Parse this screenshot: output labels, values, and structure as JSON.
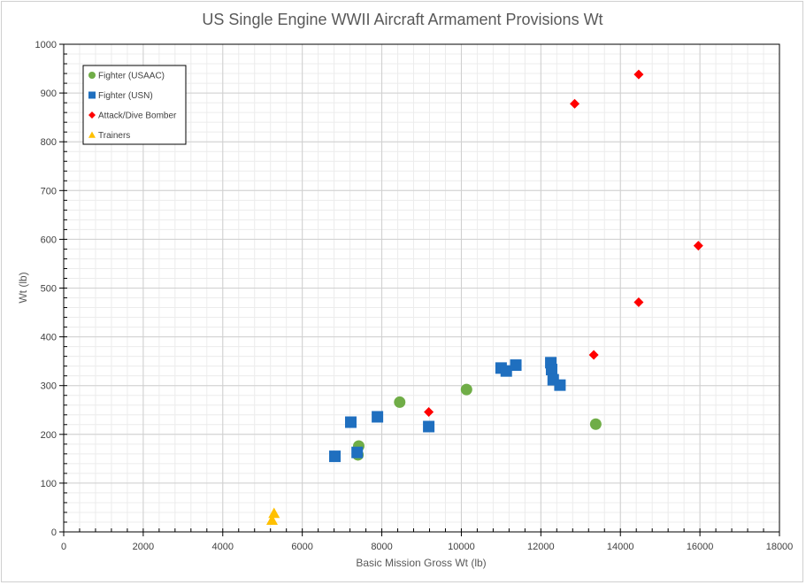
{
  "chart_data": {
    "type": "scatter",
    "title": "US Single Engine WWII Aircraft Armament Provisions Wt",
    "xlabel": "Basic Mission Gross Wt (lb)",
    "ylabel": "Wt (lb)",
    "xlim": [
      0,
      18000
    ],
    "ylim": [
      0,
      1000
    ],
    "xticks": [
      0,
      2000,
      4000,
      6000,
      8000,
      10000,
      12000,
      14000,
      16000,
      18000
    ],
    "yticks": [
      0,
      100,
      200,
      300,
      400,
      500,
      600,
      700,
      800,
      900,
      1000
    ],
    "x_minor_step": 400,
    "y_minor_step": 20,
    "legend_position": "top-left",
    "series": [
      {
        "name": "Fighter (USAAC)",
        "marker": "circle",
        "color": "#70ad47",
        "points": [
          [
            7400,
            158
          ],
          [
            7420,
            176
          ],
          [
            8450,
            266
          ],
          [
            10130,
            292
          ],
          [
            13380,
            221
          ]
        ]
      },
      {
        "name": "Fighter (USN)",
        "marker": "square",
        "color": "#1f6fbf",
        "points": [
          [
            6820,
            155
          ],
          [
            7220,
            225
          ],
          [
            7380,
            163
          ],
          [
            7890,
            236
          ],
          [
            9180,
            216
          ],
          [
            11000,
            336
          ],
          [
            11130,
            330
          ],
          [
            11370,
            342
          ],
          [
            12250,
            347
          ],
          [
            12270,
            333
          ],
          [
            12310,
            312
          ],
          [
            12480,
            301
          ]
        ]
      },
      {
        "name": "Attack/Dive Bomber",
        "marker": "diamond",
        "color": "#ff0000",
        "points": [
          [
            9180,
            246
          ],
          [
            12850,
            878
          ],
          [
            13330,
            363
          ],
          [
            14460,
            938
          ],
          [
            14460,
            471
          ],
          [
            15960,
            587
          ]
        ]
      },
      {
        "name": "Trainers",
        "marker": "triangle",
        "color": "#ffc000",
        "points": [
          [
            5240,
            24
          ],
          [
            5290,
            38
          ]
        ]
      }
    ]
  }
}
